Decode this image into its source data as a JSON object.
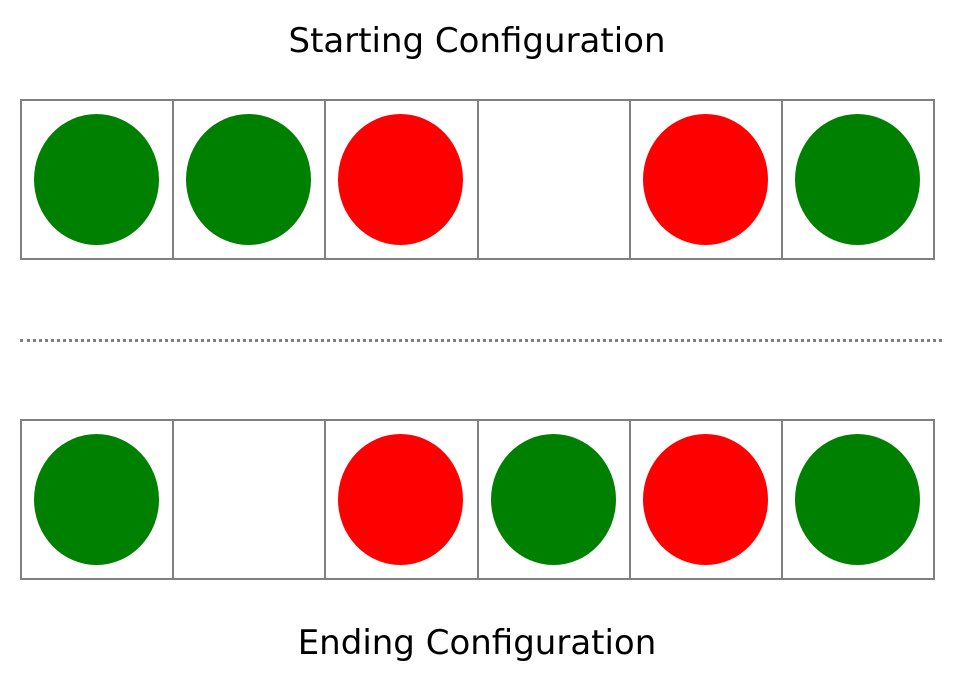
{
  "titles": {
    "start": "Starting Configuration",
    "end": "Ending Configuration"
  },
  "colors": {
    "green": "#008000",
    "red": "#ff0000",
    "grid": "#808080"
  },
  "configurations": {
    "start": [
      "green",
      "green",
      "red",
      "empty",
      "red",
      "green"
    ],
    "end": [
      "green",
      "empty",
      "red",
      "green",
      "red",
      "green"
    ]
  }
}
